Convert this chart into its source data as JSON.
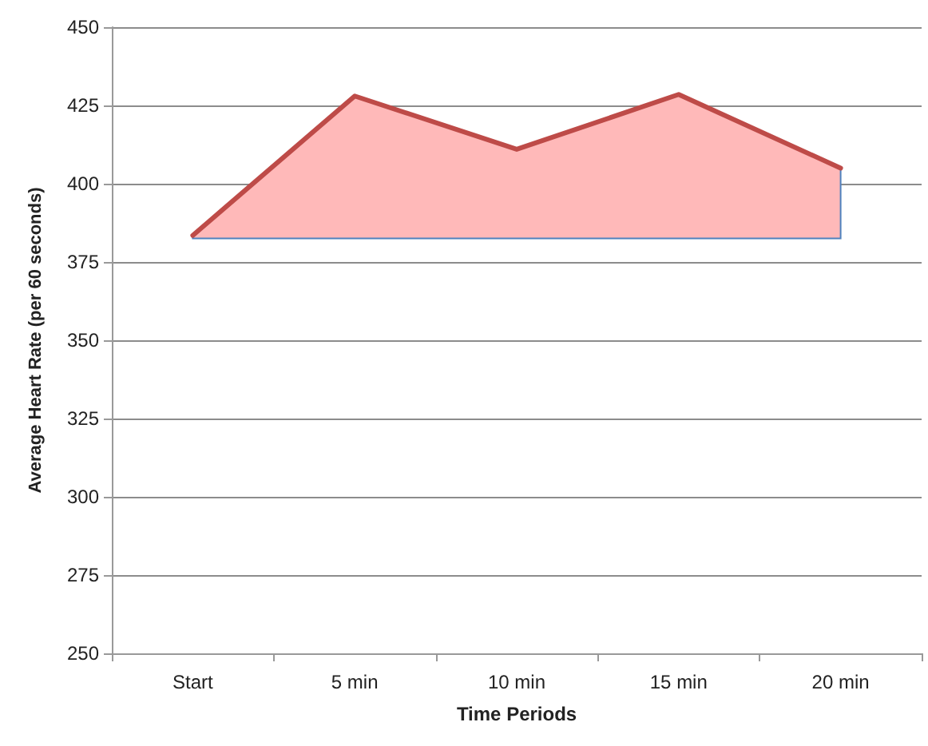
{
  "chart_data": {
    "type": "line",
    "xlabel": "Time Periods",
    "ylabel": "Average Heart Rate (per 60 seconds)",
    "categories": [
      "Start",
      "5 min",
      "10 min",
      "15 min",
      "20 min"
    ],
    "series": [
      {
        "color": "#be4b48",
        "values": [
          383.5,
          428,
          411,
          428.5,
          405
        ],
        "lower": [
          382.5,
          382.5,
          382.5,
          382.5,
          382.5
        ],
        "upper": [
          383.5,
          428,
          411,
          428.5,
          405
        ]
      }
    ],
    "ylim": [
      250,
      450
    ],
    "yticks": [
      250,
      275,
      300,
      325,
      350,
      375,
      400,
      425,
      450
    ],
    "grid": "y",
    "marker": "none",
    "line_style": "solid"
  }
}
